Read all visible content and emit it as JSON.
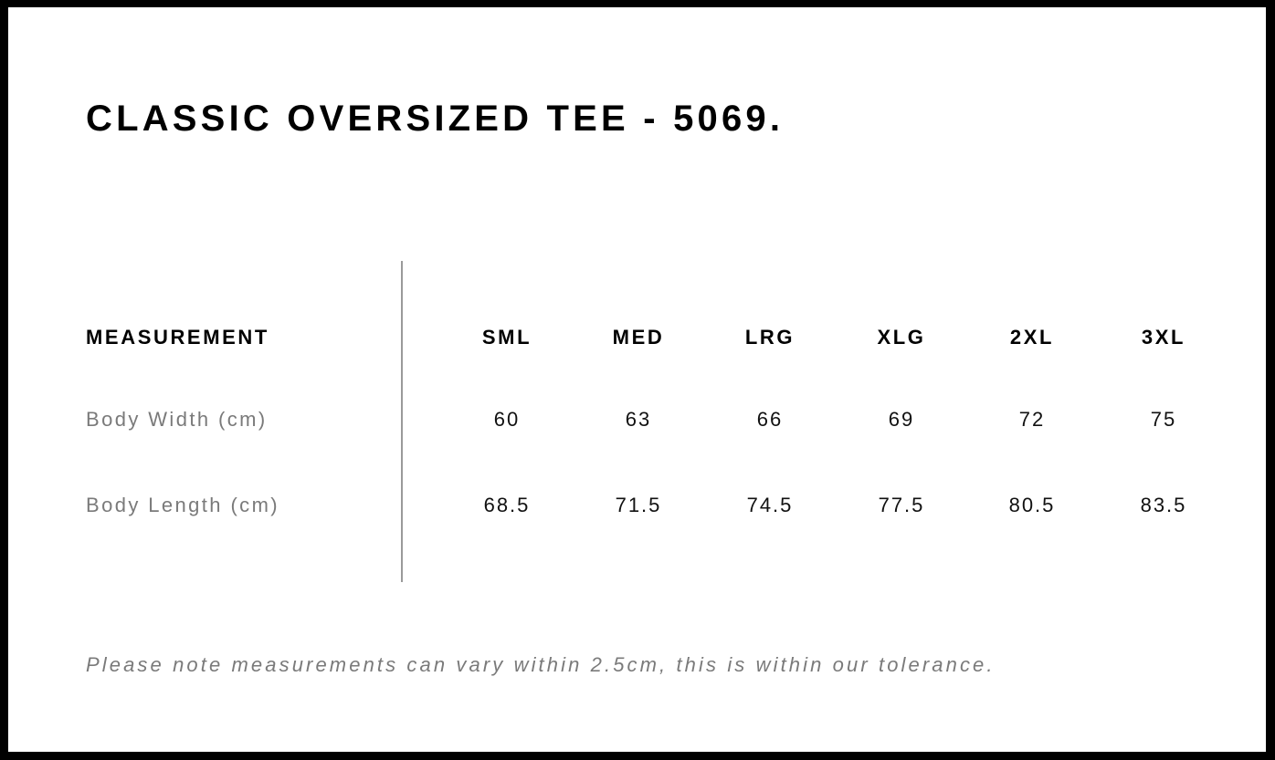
{
  "title": "CLASSIC OVERSIZED TEE - 5069.",
  "table": {
    "header_label": "MEASUREMENT",
    "sizes": [
      "SML",
      "MED",
      "LRG",
      "XLG",
      "2XL",
      "3XL"
    ],
    "rows": [
      {
        "label": "Body Width (cm)",
        "values": [
          "60",
          "63",
          "66",
          "69",
          "72",
          "75"
        ]
      },
      {
        "label": "Body Length (cm)",
        "values": [
          "68.5",
          "71.5",
          "74.5",
          "77.5",
          "80.5",
          "83.5"
        ]
      }
    ]
  },
  "note": "Please note measurements can vary within 2.5cm, this is within our tolerance."
}
